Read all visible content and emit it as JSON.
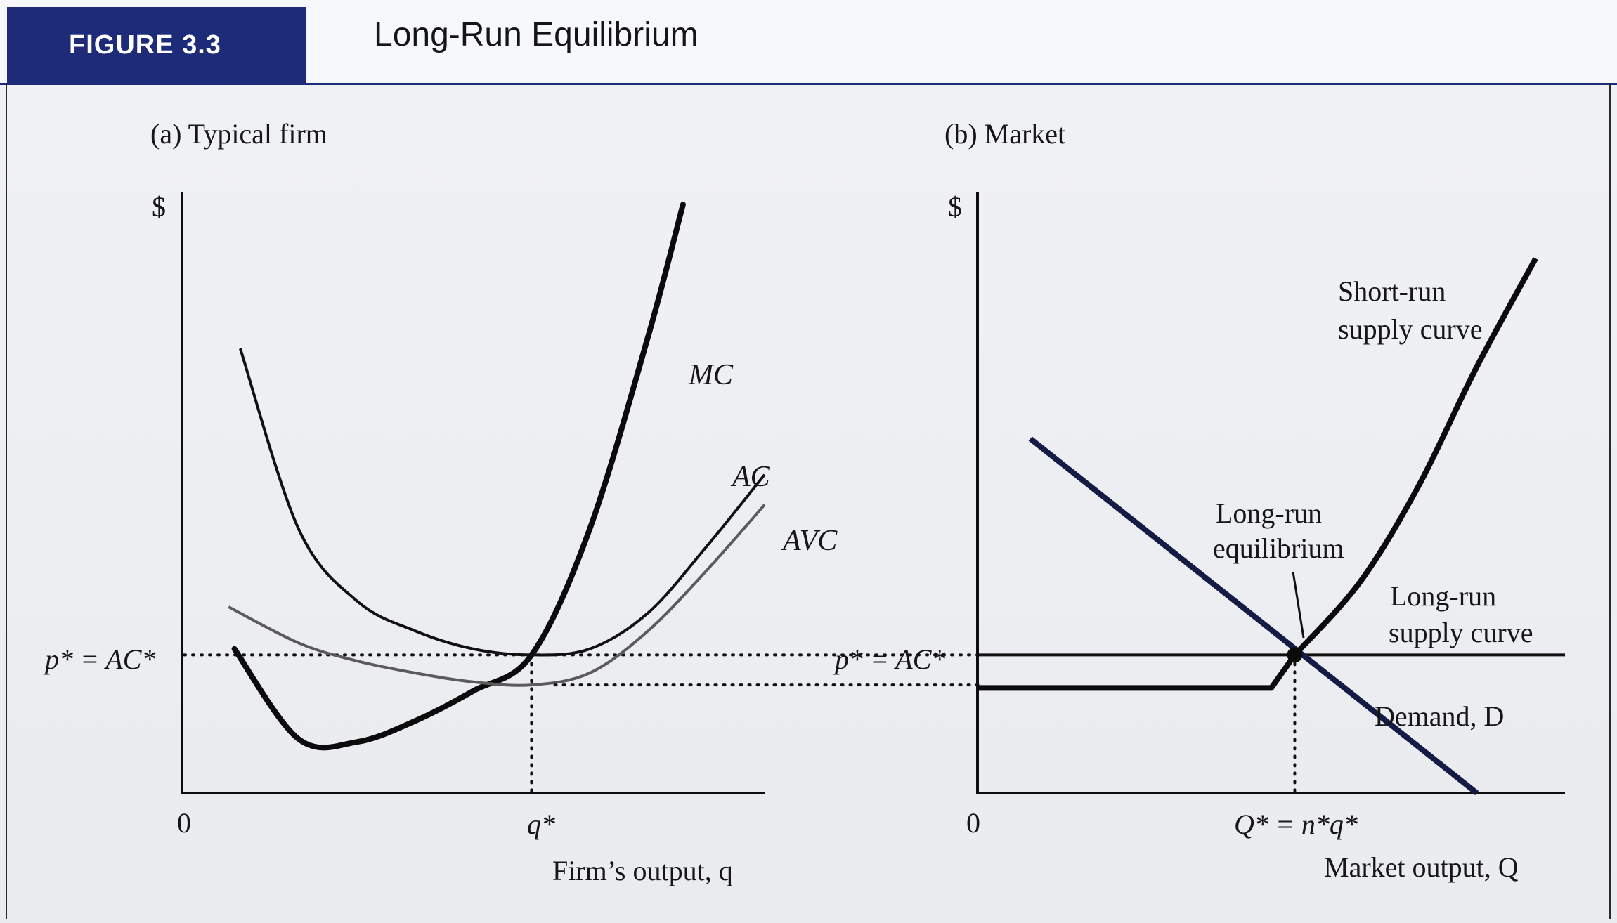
{
  "figure": {
    "label": "FIGURE 3.3",
    "title": "Long-Run Equilibrium"
  },
  "panel_a": {
    "heading": "(a) Typical firm",
    "y_axis_label": "$",
    "origin_label": "0",
    "x_axis_label": "Firm’s output, q",
    "price_label": "p* = AC*",
    "qstar_label": "q*",
    "curve_labels": {
      "mc": "MC",
      "ac": "AC",
      "avc": "AVC"
    }
  },
  "panel_b": {
    "heading": "(b) Market",
    "y_axis_label": "$",
    "origin_label": "0",
    "x_axis_label": "Market output, Q",
    "price_label": "p* = AC*",
    "qstar_label": "Q* = n*q*",
    "annotations": {
      "short_run_1": "Short-run",
      "short_run_2": "supply curve",
      "eq_1": "Long-run",
      "eq_2": "equilibrium",
      "lr_1": "Long-run",
      "lr_2": "supply curve",
      "demand": "Demand, D"
    }
  },
  "colors": {
    "brand_blue": "#1e2b78",
    "demand_navy": "#141b45",
    "curve_black": "#0b0b0b",
    "avc_gray": "#5b5b5b"
  },
  "chart_data": [
    {
      "type": "line",
      "panel": "(a) Typical firm",
      "notes": "Schematic cost curves; values in arbitrary units (axis not numbered).",
      "xlim": [
        0,
        10
      ],
      "ylim": [
        0,
        10
      ],
      "x_ticks": [
        "0",
        "q*"
      ],
      "y_ticks": [
        "p* = AC*"
      ],
      "q_star": 6.0,
      "p_star": 2.3,
      "series": [
        {
          "name": "MC",
          "x": [
            0.9,
            2.0,
            3.0,
            4.0,
            5.0,
            6.0,
            7.0,
            8.0,
            8.6
          ],
          "y": [
            2.4,
            0.9,
            0.85,
            1.2,
            1.7,
            2.3,
            4.4,
            7.6,
            9.8
          ]
        },
        {
          "name": "AC",
          "x": [
            1.0,
            2.0,
            3.0,
            4.0,
            5.0,
            6.0,
            7.0,
            8.0,
            9.0,
            10.0
          ],
          "y": [
            7.4,
            4.4,
            3.2,
            2.7,
            2.4,
            2.3,
            2.4,
            3.0,
            4.1,
            5.3
          ]
        },
        {
          "name": "AVC",
          "x": [
            0.8,
            2.0,
            3.0,
            4.0,
            5.0,
            6.0,
            7.0,
            8.0,
            9.0,
            10.0
          ],
          "y": [
            3.1,
            2.5,
            2.2,
            2.0,
            1.85,
            1.8,
            2.0,
            2.7,
            3.7,
            4.8
          ]
        }
      ]
    },
    {
      "type": "line",
      "panel": "(b) Market",
      "notes": "Schematic supply/demand; values in arbitrary units (axis not numbered).",
      "xlim": [
        0,
        10
      ],
      "ylim": [
        0,
        10
      ],
      "x_ticks": [
        "0",
        "Q* = n*q*"
      ],
      "y_ticks": [
        "p* = AC*"
      ],
      "equilibrium": {
        "x": 5.4,
        "y": 2.3
      },
      "series": [
        {
          "name": "Short-run supply curve",
          "x": [
            0.0,
            5.0,
            5.4,
            6.5,
            7.5,
            8.5,
            9.5
          ],
          "y": [
            1.75,
            1.75,
            2.3,
            3.5,
            5.1,
            7.1,
            8.9
          ]
        },
        {
          "name": "Long-run supply curve",
          "x": [
            0.0,
            10.0
          ],
          "y": [
            2.3,
            2.3
          ]
        },
        {
          "name": "Demand, D",
          "x": [
            0.9,
            8.5
          ],
          "y": [
            5.9,
            0.0
          ]
        }
      ]
    }
  ]
}
